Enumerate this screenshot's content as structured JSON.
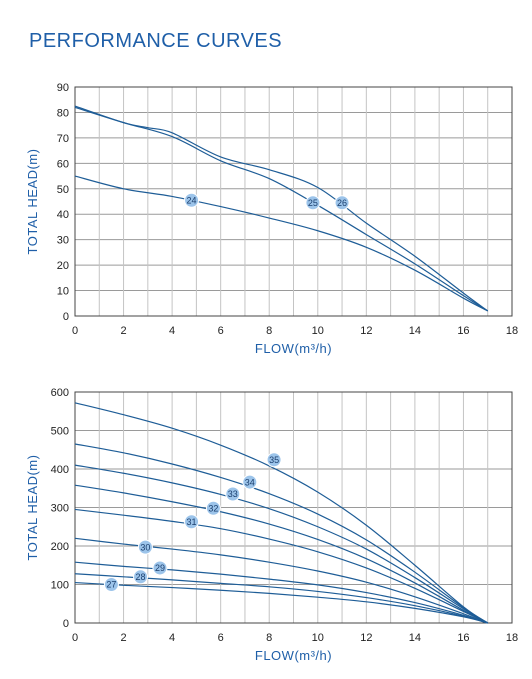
{
  "page": {
    "title": "PERFORMANCE CURVES"
  },
  "colors": {
    "curve": "#1e5d97",
    "grid": "#9a9a9a",
    "gridV": "#c4c4c4",
    "axis": "#444444",
    "marker": "#9cc4ea",
    "title": "#1f5fa8"
  },
  "chart_data": [
    {
      "type": "line",
      "title": "",
      "xlabel": "FLOW(m³/h)",
      "ylabel": "TOTAL HEAD(m)",
      "xlim": [
        0,
        18
      ],
      "ylim": [
        0,
        90
      ],
      "xticks": [
        0,
        2,
        4,
        6,
        8,
        10,
        12,
        14,
        16,
        18
      ],
      "yticks": [
        0,
        10,
        20,
        30,
        40,
        50,
        60,
        70,
        80,
        90
      ],
      "grid": true,
      "series": [
        {
          "name": "24",
          "label_at": [
            4.8,
            45.5
          ],
          "x": [
            0,
            2,
            4,
            6,
            8,
            10,
            12,
            14,
            16,
            17
          ],
          "y": [
            55,
            50,
            47,
            43,
            38.5,
            33.5,
            27,
            18,
            7,
            2
          ]
        },
        {
          "name": "25",
          "label_at": [
            9.8,
            44.5
          ],
          "x": [
            0,
            2,
            4,
            6,
            8,
            10,
            12,
            14,
            16,
            17
          ],
          "y": [
            82,
            76,
            70.5,
            61,
            54,
            43.5,
            32,
            20.5,
            8,
            2
          ]
        },
        {
          "name": "26",
          "label_at": [
            11,
            44.5
          ],
          "x": [
            0,
            2,
            3,
            4,
            6,
            8,
            10,
            12,
            14,
            16,
            17
          ],
          "y": [
            82.5,
            76,
            74,
            72,
            62.5,
            57.5,
            50.5,
            36.5,
            23.5,
            9,
            2
          ]
        }
      ]
    },
    {
      "type": "line",
      "title": "",
      "xlabel": "FLOW(m³/h)",
      "ylabel": "TOTAL HEAD(m)",
      "xlim": [
        0,
        18
      ],
      "ylim": [
        0,
        600
      ],
      "xticks": [
        0,
        2,
        4,
        6,
        8,
        10,
        12,
        14,
        16,
        18
      ],
      "yticks": [
        0,
        100,
        200,
        300,
        400,
        500,
        600
      ],
      "grid": true,
      "series": [
        {
          "name": "27",
          "label_at": [
            1.5,
            100
          ],
          "x": [
            0,
            2,
            4,
            6,
            8,
            10,
            12,
            14,
            16,
            17
          ],
          "y": [
            105,
            98,
            92,
            85,
            77,
            67,
            55,
            38,
            16,
            0
          ]
        },
        {
          "name": "28",
          "label_at": [
            2.7,
            120
          ],
          "x": [
            0,
            2,
            4,
            6,
            8,
            10,
            12,
            14,
            16,
            17
          ],
          "y": [
            128,
            120,
            112,
            103,
            94,
            82,
            66,
            45,
            18,
            0
          ]
        },
        {
          "name": "29",
          "label_at": [
            3.5,
            143
          ],
          "x": [
            0,
            2,
            4,
            6,
            8,
            10,
            12,
            14,
            16,
            17
          ],
          "y": [
            158,
            147,
            138,
            127,
            114,
            99,
            79,
            53,
            20,
            0
          ]
        },
        {
          "name": "30",
          "label_at": [
            2.9,
            197
          ],
          "x": [
            0,
            2,
            4,
            6,
            8,
            10,
            12,
            14,
            16,
            17
          ],
          "y": [
            220,
            205,
            192,
            177,
            158,
            135,
            106,
            68,
            24,
            0
          ]
        },
        {
          "name": "31",
          "label_at": [
            4.8,
            263
          ],
          "x": [
            0,
            2,
            4,
            6,
            8,
            10,
            12,
            14,
            16,
            17
          ],
          "y": [
            295,
            280,
            264,
            245,
            218,
            185,
            143,
            90,
            30,
            0
          ]
        },
        {
          "name": "32",
          "label_at": [
            5.7,
            298
          ],
          "x": [
            0,
            2,
            4,
            6,
            8,
            10,
            12,
            14,
            16,
            17
          ],
          "y": [
            358,
            338,
            315,
            289,
            257,
            217,
            167,
            104,
            33,
            0
          ]
        },
        {
          "name": "33",
          "label_at": [
            6.5,
            335
          ],
          "x": [
            0,
            2,
            4,
            6,
            8,
            10,
            12,
            14,
            16,
            17
          ],
          "y": [
            410,
            389,
            364,
            334,
            297,
            250,
            192,
            118,
            37,
            0
          ]
        },
        {
          "name": "34",
          "label_at": [
            7.2,
            366
          ],
          "x": [
            0,
            2,
            4,
            6,
            8,
            10,
            12,
            14,
            16,
            17
          ],
          "y": [
            465,
            442,
            413,
            378,
            336,
            283,
            216,
            132,
            40,
            0
          ]
        },
        {
          "name": "35",
          "label_at": [
            8.2,
            424
          ],
          "x": [
            0,
            2,
            4,
            6,
            8,
            10,
            12,
            14,
            16,
            17
          ],
          "y": [
            572,
            541,
            506,
            462,
            408,
            340,
            254,
            150,
            42,
            0
          ]
        }
      ]
    }
  ]
}
